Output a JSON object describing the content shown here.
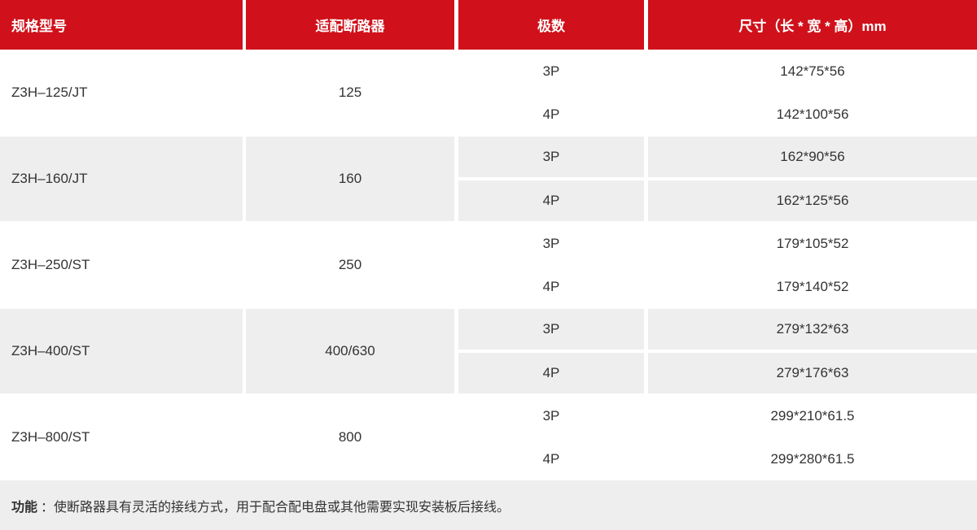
{
  "header": [
    "规格型号",
    "适配断路器",
    "极数",
    "尺寸（长 * 宽 * 高）mm"
  ],
  "groups": [
    {
      "model": "Z3H–125/JT",
      "breaker": "125",
      "rows": [
        {
          "poles": "3P",
          "size": "142*75*56"
        },
        {
          "poles": "4P",
          "size": "142*100*56"
        }
      ]
    },
    {
      "model": "Z3H–160/JT",
      "breaker": "160",
      "rows": [
        {
          "poles": "3P",
          "size": "162*90*56"
        },
        {
          "poles": "4P",
          "size": "162*125*56"
        }
      ]
    },
    {
      "model": "Z3H–250/ST",
      "breaker": "250",
      "rows": [
        {
          "poles": "3P",
          "size": "179*105*52"
        },
        {
          "poles": "4P",
          "size": "179*140*52"
        }
      ]
    },
    {
      "model": "Z3H–400/ST",
      "breaker": "400/630",
      "rows": [
        {
          "poles": "3P",
          "size": "279*132*63"
        },
        {
          "poles": "4P",
          "size": "279*176*63"
        }
      ]
    },
    {
      "model": "Z3H–800/ST",
      "breaker": "800",
      "rows": [
        {
          "poles": "3P",
          "size": "299*210*61.5"
        },
        {
          "poles": "4P",
          "size": "299*280*61.5"
        }
      ]
    }
  ],
  "footer": {
    "label": "功能",
    "text": "：使断路器具有灵活的接线方式，用于配合配电盘或其他需要实现安装板后接线。"
  },
  "colors": {
    "header_bg": "#d0111b",
    "alt_row_bg": "#eeeeee"
  }
}
